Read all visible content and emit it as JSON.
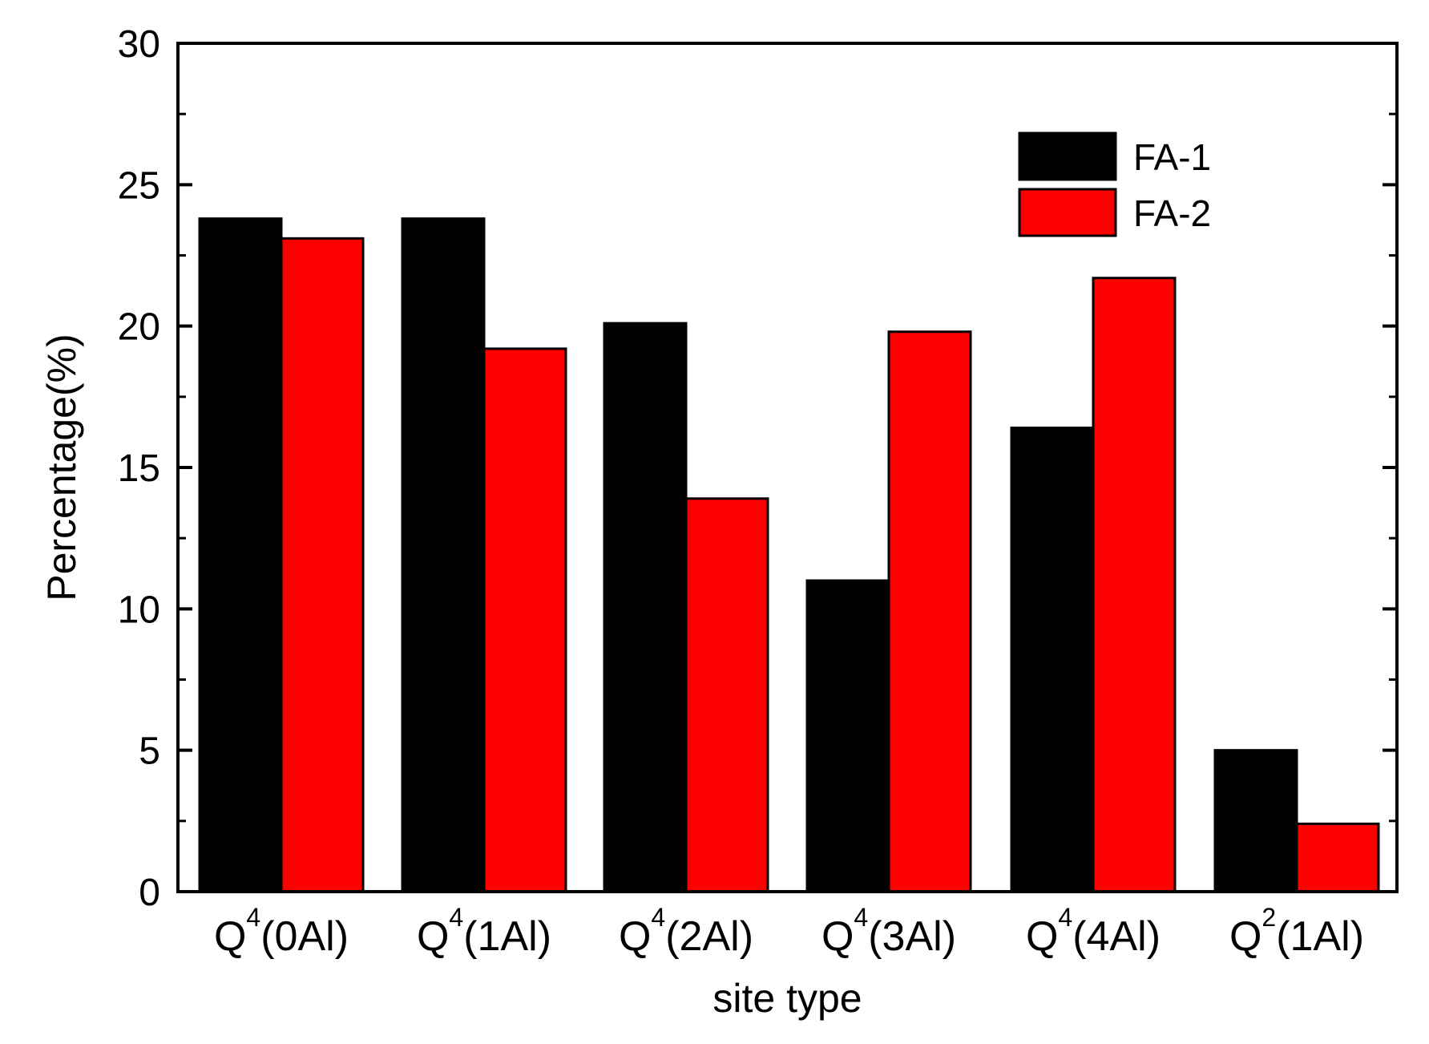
{
  "chart_data": {
    "type": "bar",
    "title": "",
    "xlabel": "site type",
    "ylabel": "Percentage(%)",
    "ylim": [
      0,
      30
    ],
    "yticks": [
      0,
      5,
      10,
      15,
      20,
      25,
      30
    ],
    "grid": false,
    "legend_position": "top-right",
    "categories": [
      {
        "base": "Q",
        "sup": "4",
        "rest": "(0Al)"
      },
      {
        "base": "Q",
        "sup": "4",
        "rest": "(1Al)"
      },
      {
        "base": "Q",
        "sup": "4",
        "rest": "(2Al)"
      },
      {
        "base": "Q",
        "sup": "4",
        "rest": "(3Al)"
      },
      {
        "base": "Q",
        "sup": "4",
        "rest": "(4Al)"
      },
      {
        "base": "Q",
        "sup": "2",
        "rest": "(1Al)"
      }
    ],
    "series": [
      {
        "name": "FA-1",
        "color": "#000000",
        "values": [
          23.8,
          23.8,
          20.1,
          11.0,
          16.4,
          5.0
        ]
      },
      {
        "name": "FA-2",
        "color": "#ff0000",
        "values": [
          23.1,
          19.2,
          13.9,
          19.8,
          21.7,
          2.4
        ]
      }
    ]
  }
}
